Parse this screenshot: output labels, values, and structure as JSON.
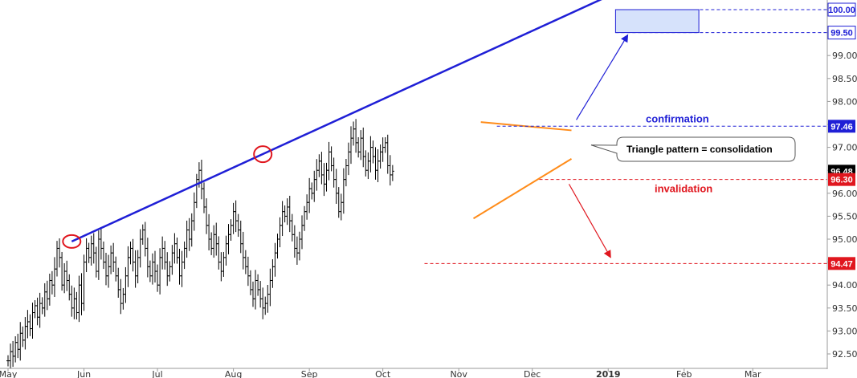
{
  "chart_data": {
    "type": "ohlc",
    "title": "",
    "xlabel": "",
    "ylabel": "",
    "ylim": [
      92.2,
      100.3
    ],
    "y_ticks": [
      "92.50",
      "93.00",
      "93.50",
      "94.00",
      "94.50",
      "95.00",
      "95.50",
      "96.00",
      "96.50",
      "97.00",
      "97.50",
      "98.00",
      "98.50",
      "99.00",
      "99.50",
      "100.00"
    ],
    "x_ticks": [
      {
        "label": "May",
        "day": 0
      },
      {
        "label": "Jun",
        "day": 31
      },
      {
        "label": "Jul",
        "day": 61
      },
      {
        "label": "Aug",
        "day": 92
      },
      {
        "label": "Sep",
        "day": 123
      },
      {
        "label": "Oct",
        "day": 153
      },
      {
        "label": "Nov",
        "day": 184
      },
      {
        "label": "Dec",
        "day": 214
      },
      {
        "label": "2019",
        "day": 245
      },
      {
        "label": "Feb",
        "day": 276
      },
      {
        "label": "Mar",
        "day": 304
      }
    ],
    "closes": [
      92.35,
      92.55,
      92.45,
      92.75,
      92.6,
      92.95,
      92.8,
      93.1,
      93.2,
      93.05,
      93.4,
      93.55,
      93.3,
      93.6,
      93.5,
      93.85,
      93.7,
      94.1,
      94.0,
      94.35,
      94.8,
      94.6,
      94.0,
      94.3,
      94.1,
      93.8,
      93.5,
      93.7,
      93.4,
      94.0,
      93.6,
      94.5,
      94.8,
      94.6,
      94.9,
      94.7,
      94.3,
      95.0,
      94.8,
      94.5,
      94.2,
      94.4,
      94.7,
      94.5,
      94.2,
      93.9,
      93.6,
      93.8,
      94.2,
      94.6,
      94.8,
      94.5,
      94.2,
      94.6,
      95.0,
      95.2,
      94.8,
      94.4,
      94.2,
      94.5,
      94.3,
      94.0,
      94.6,
      94.8,
      94.5,
      94.2,
      94.4,
      94.7,
      94.9,
      94.6,
      94.2,
      94.5,
      94.8,
      95.2,
      95.0,
      95.4,
      95.8,
      96.3,
      96.5,
      96.1,
      95.7,
      95.3,
      95.0,
      94.8,
      95.1,
      94.9,
      94.5,
      94.3,
      94.6,
      94.9,
      95.1,
      95.3,
      95.6,
      95.4,
      95.2,
      94.9,
      94.6,
      94.4,
      94.2,
      93.9,
      93.7,
      94.1,
      93.9,
      93.7,
      93.5,
      93.6,
      93.8,
      94.1,
      94.4,
      94.7,
      95.0,
      95.3,
      95.6,
      95.5,
      95.7,
      95.4,
      95.1,
      94.8,
      94.7,
      95.0,
      95.3,
      95.6,
      95.8,
      96.1,
      96.0,
      96.3,
      96.5,
      96.7,
      96.4,
      96.2,
      96.5,
      96.9,
      96.6,
      96.3,
      96.0,
      95.6,
      95.8,
      96.3,
      96.6,
      96.9,
      97.2,
      97.4,
      97.1,
      96.9,
      97.2,
      96.8,
      96.5,
      96.7,
      97.0,
      96.8,
      96.5,
      96.7,
      96.9,
      97.0,
      97.1,
      96.6,
      96.4,
      96.48
    ],
    "high_points": [
      {
        "day": 26,
        "value": 94.95
      },
      {
        "day": 104,
        "value": 96.85
      }
    ],
    "price_levels": [
      {
        "value": "100.00",
        "kind": "target"
      },
      {
        "value": "99.50",
        "kind": "target"
      },
      {
        "value": "97.46",
        "kind": "confirmation"
      },
      {
        "value": "96.48",
        "kind": "last"
      },
      {
        "value": "96.30",
        "kind": "invalidation"
      },
      {
        "value": "94.47",
        "kind": "downside"
      }
    ],
    "channel_line": {
      "start_day": 26,
      "start_value": 94.95,
      "slope_per_day": 0.0244
    },
    "triangle": {
      "upper": [
        {
          "day": 193,
          "value": 97.55
        },
        {
          "day": 230,
          "value": 97.37
        }
      ],
      "lower": [
        {
          "day": 190,
          "value": 95.45
        },
        {
          "day": 230,
          "value": 96.75
        }
      ]
    },
    "target_box": {
      "day_from": 248,
      "day_to": 282,
      "low": 99.5,
      "high": 100.0
    },
    "annotations": {
      "confirmation": "confirmation",
      "invalidation": "invalidation",
      "callout": "Triangle pattern = consolidation"
    },
    "colors": {
      "bars": "#000000",
      "channel": "#1f1fd6",
      "triangle": "#ff8c1a",
      "confirmation": "#1f1fd6",
      "invalidation": "#e0161e",
      "target_fill": "#d6e2fb",
      "last_badge": "#000000"
    }
  }
}
